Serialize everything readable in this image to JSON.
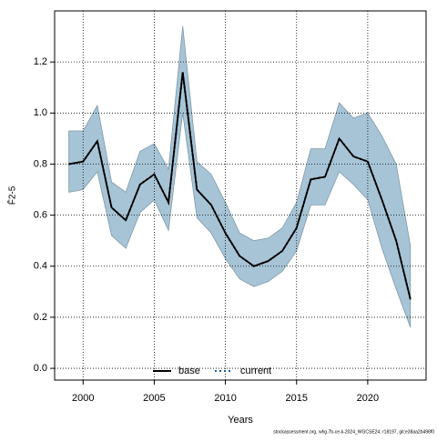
{
  "chart_data": {
    "type": "line",
    "x_label": "Years",
    "y_label": "F̄2-5",
    "footer": "stockassessment.org, whg.7b-ce-k-2024_WGCSE24, r18197, git:e38aa2b498f0",
    "x": [
      1999,
      2000,
      2001,
      2002,
      2003,
      2004,
      2005,
      2006,
      2007,
      2008,
      2009,
      2010,
      2011,
      2012,
      2013,
      2014,
      2015,
      2016,
      2017,
      2018,
      2019,
      2020,
      2021,
      2022,
      2023
    ],
    "series": [
      {
        "name": "base",
        "color": "#000000",
        "dash": "solid",
        "values": [
          0.8,
          0.81,
          0.89,
          0.63,
          0.58,
          0.72,
          0.76,
          0.65,
          1.16,
          0.7,
          0.64,
          0.53,
          0.44,
          0.4,
          0.42,
          0.46,
          0.55,
          0.74,
          0.75,
          0.9,
          0.83,
          0.81,
          0.66,
          0.5,
          0.27
        ]
      },
      {
        "name": "current",
        "color": "#000000",
        "dash": "dotted",
        "values": [
          0.8,
          0.81,
          0.89,
          0.63,
          0.58,
          0.72,
          0.76,
          0.65,
          1.16,
          0.7,
          0.64,
          0.53,
          0.44,
          0.4,
          0.42,
          0.46,
          0.55,
          0.74,
          0.75,
          0.9,
          0.83,
          0.81,
          0.66,
          0.5,
          0.27
        ]
      }
    ],
    "band": {
      "color": "#a6c4d6",
      "upper": [
        0.93,
        0.93,
        1.03,
        0.73,
        0.69,
        0.85,
        0.88,
        0.78,
        1.34,
        0.81,
        0.76,
        0.65,
        0.53,
        0.5,
        0.51,
        0.55,
        0.65,
        0.86,
        0.86,
        1.04,
        0.98,
        1.0,
        0.91,
        0.8,
        0.48
      ],
      "lower": [
        0.69,
        0.7,
        0.77,
        0.52,
        0.47,
        0.61,
        0.66,
        0.54,
        1.0,
        0.59,
        0.53,
        0.43,
        0.35,
        0.32,
        0.34,
        0.38,
        0.46,
        0.64,
        0.64,
        0.77,
        0.72,
        0.66,
        0.47,
        0.31,
        0.16
      ]
    },
    "xlim": [
      1998,
      2024.1
    ],
    "ylim": [
      -0.046,
      1.4
    ],
    "xticks": [
      2000,
      2005,
      2010,
      2015,
      2020
    ],
    "yticks": [
      {
        "value": 0,
        "label": "0.0"
      },
      0.2,
      0.4,
      0.6,
      0.8,
      {
        "value": 1,
        "label": "1.0"
      },
      1.2
    ],
    "grid": true,
    "legend": "bottom"
  }
}
